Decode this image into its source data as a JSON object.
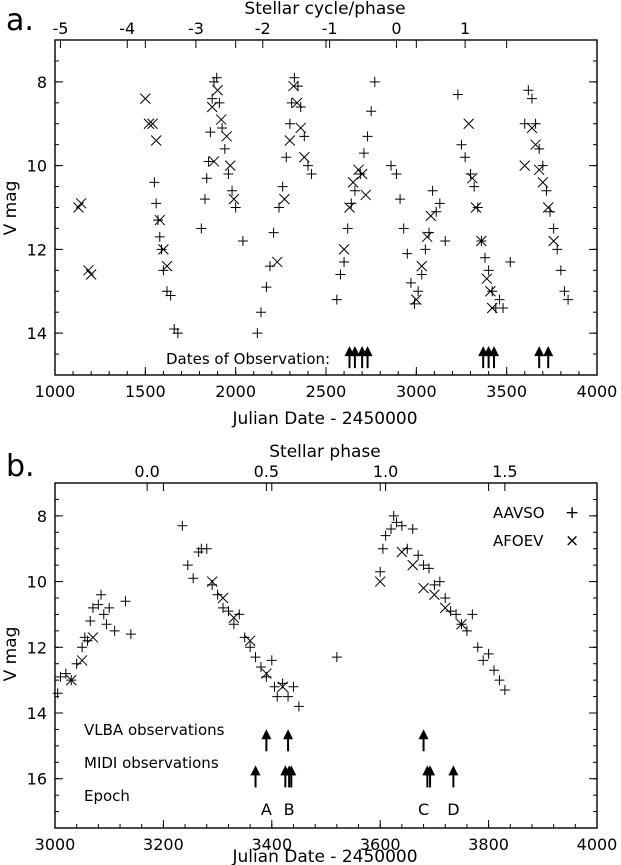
{
  "panels": {
    "a": {
      "panel_label": "a.",
      "top_axis_title": "Stellar cycle/phase",
      "xlabel": "Julian Date - 2450000",
      "ylabel": "V mag",
      "annotation": "Dates of Observation:"
    },
    "b": {
      "panel_label": "b.",
      "top_axis_title": "Stellar phase",
      "xlabel": "Julian Date - 2450000",
      "ylabel": "V mag",
      "legend": [
        {
          "name": "AAVSO",
          "symbol": "+"
        },
        {
          "name": "AFOEV",
          "symbol": "×"
        }
      ],
      "row_labels": {
        "vlba": "VLBA observations",
        "midi": "MIDI observations",
        "epoch": "Epoch"
      }
    }
  },
  "chart_data": [
    {
      "type": "scatter",
      "panel": "a",
      "xlim": [
        1000,
        4000
      ],
      "ylim": [
        15,
        7
      ],
      "y_inverted": true,
      "xticks": [
        "1000",
        "1500",
        "2000",
        "2500",
        "3000",
        "3500",
        "4000"
      ],
      "xtick_values": [
        1000,
        1500,
        2000,
        2500,
        3000,
        3500,
        4000
      ],
      "yticks": [
        "8",
        "10",
        "12",
        "14"
      ],
      "ytick_values": [
        8,
        10,
        12,
        14
      ],
      "top_ticks": [
        {
          "label": "-5",
          "x": 1030
        },
        {
          "label": "-4",
          "x": 1400
        },
        {
          "label": "-3",
          "x": 1780
        },
        {
          "label": "-2",
          "x": 2150
        },
        {
          "label": "-1",
          "x": 2520
        },
        {
          "label": "0",
          "x": 2890
        },
        {
          "label": "1",
          "x": 3270
        }
      ],
      "observation_arrows": [
        2630,
        2660,
        2700,
        2730,
        3370,
        3400,
        3430,
        3680,
        3730
      ],
      "observation_arrow_y": 14.55,
      "series": [
        {
          "symbol": "x",
          "points": [
            [
              1130,
              11.0
            ],
            [
              1145,
              10.9
            ],
            [
              1185,
              12.5
            ],
            [
              1200,
              12.6
            ],
            [
              1500,
              8.4
            ],
            [
              1520,
              9.0
            ],
            [
              1540,
              9.0
            ],
            [
              1560,
              9.4
            ],
            [
              1580,
              11.3
            ],
            [
              1600,
              12.0
            ],
            [
              1620,
              12.4
            ],
            [
              1870,
              8.6
            ],
            [
              1880,
              9.9
            ],
            [
              1900,
              8.2
            ],
            [
              1920,
              8.9
            ],
            [
              1950,
              9.3
            ],
            [
              1970,
              10.0
            ],
            [
              1990,
              10.8
            ],
            [
              2230,
              12.3
            ],
            [
              2270,
              10.8
            ],
            [
              2300,
              9.4
            ],
            [
              2320,
              8.1
            ],
            [
              2340,
              8.5
            ],
            [
              2360,
              9.1
            ],
            [
              2380,
              9.8
            ],
            [
              2600,
              12.0
            ],
            [
              2630,
              11.0
            ],
            [
              2650,
              10.4
            ],
            [
              2680,
              10.1
            ],
            [
              2700,
              10.2
            ],
            [
              2720,
              10.7
            ],
            [
              3000,
              13.2
            ],
            [
              3030,
              12.4
            ],
            [
              3060,
              11.7
            ],
            [
              3080,
              11.2
            ],
            [
              3290,
              9.0
            ],
            [
              3310,
              10.3
            ],
            [
              3330,
              11.0
            ],
            [
              3360,
              11.8
            ],
            [
              3390,
              12.7
            ],
            [
              3410,
              13.0
            ],
            [
              3420,
              13.4
            ],
            [
              3600,
              10.0
            ],
            [
              3640,
              9.1
            ],
            [
              3660,
              9.5
            ],
            [
              3680,
              10.1
            ],
            [
              3700,
              10.4
            ],
            [
              3730,
              11.0
            ],
            [
              3760,
              11.8
            ]
          ]
        },
        {
          "symbol": "+",
          "points": [
            [
              1550,
              10.4
            ],
            [
              1560,
              10.9
            ],
            [
              1570,
              11.3
            ],
            [
              1580,
              11.7
            ],
            [
              1590,
              12.0
            ],
            [
              1600,
              12.5
            ],
            [
              1620,
              13.0
            ],
            [
              1640,
              13.1
            ],
            [
              1660,
              13.9
            ],
            [
              1680,
              14.0
            ],
            [
              1810,
              11.5
            ],
            [
              1830,
              10.8
            ],
            [
              1840,
              10.3
            ],
            [
              1850,
              9.9
            ],
            [
              1860,
              9.2
            ],
            [
              1870,
              8.4
            ],
            [
              1880,
              8.0
            ],
            [
              1895,
              7.9
            ],
            [
              1910,
              8.5
            ],
            [
              1925,
              9.1
            ],
            [
              1940,
              9.6
            ],
            [
              1960,
              10.2
            ],
            [
              1980,
              10.6
            ],
            [
              2000,
              11.0
            ],
            [
              2040,
              11.8
            ],
            [
              2120,
              14.0
            ],
            [
              2140,
              13.5
            ],
            [
              2170,
              12.9
            ],
            [
              2190,
              12.4
            ],
            [
              2210,
              11.6
            ],
            [
              2240,
              11.0
            ],
            [
              2260,
              10.5
            ],
            [
              2280,
              9.8
            ],
            [
              2300,
              9.0
            ],
            [
              2310,
              8.5
            ],
            [
              2325,
              7.9
            ],
            [
              2345,
              8.1
            ],
            [
              2360,
              8.6
            ],
            [
              2380,
              9.3
            ],
            [
              2400,
              10.0
            ],
            [
              2420,
              10.2
            ],
            [
              2560,
              13.2
            ],
            [
              2580,
              12.6
            ],
            [
              2600,
              12.3
            ],
            [
              2620,
              11.5
            ],
            [
              2640,
              10.9
            ],
            [
              2660,
              10.6
            ],
            [
              2690,
              10.2
            ],
            [
              2710,
              9.7
            ],
            [
              2730,
              9.3
            ],
            [
              2750,
              8.7
            ],
            [
              2770,
              8.0
            ],
            [
              2860,
              10.0
            ],
            [
              2890,
              10.2
            ],
            [
              2910,
              10.8
            ],
            [
              2930,
              11.5
            ],
            [
              2950,
              12.1
            ],
            [
              2970,
              12.8
            ],
            [
              2990,
              13.3
            ],
            [
              3010,
              13.0
            ],
            [
              3030,
              12.6
            ],
            [
              3050,
              12.0
            ],
            [
              3070,
              11.6
            ],
            [
              3090,
              10.6
            ],
            [
              3110,
              11.1
            ],
            [
              3130,
              10.9
            ],
            [
              3160,
              11.8
            ],
            [
              3230,
              8.3
            ],
            [
              3250,
              9.5
            ],
            [
              3270,
              9.8
            ],
            [
              3300,
              10.2
            ],
            [
              3320,
              10.5
            ],
            [
              3340,
              11.0
            ],
            [
              3360,
              11.8
            ],
            [
              3380,
              12.2
            ],
            [
              3400,
              12.5
            ],
            [
              3420,
              13.0
            ],
            [
              3440,
              13.4
            ],
            [
              3460,
              13.2
            ],
            [
              3480,
              13.4
            ],
            [
              3520,
              12.3
            ],
            [
              3600,
              9.0
            ],
            [
              3620,
              8.2
            ],
            [
              3640,
              8.4
            ],
            [
              3660,
              9.0
            ],
            [
              3680,
              9.6
            ],
            [
              3700,
              10.0
            ],
            [
              3720,
              10.6
            ],
            [
              3740,
              11.1
            ],
            [
              3760,
              11.5
            ],
            [
              3780,
              12.0
            ],
            [
              3800,
              12.5
            ],
            [
              3820,
              13.0
            ],
            [
              3840,
              13.2
            ]
          ]
        }
      ]
    },
    {
      "type": "scatter",
      "panel": "b",
      "xlim": [
        3000,
        4000
      ],
      "ylim": [
        17.5,
        7
      ],
      "y_inverted": true,
      "xticks": [
        "3000",
        "3200",
        "3400",
        "3600",
        "3800",
        "4000"
      ],
      "xtick_values": [
        3000,
        3200,
        3400,
        3600,
        3800,
        4000
      ],
      "yticks": [
        "8",
        "10",
        "12",
        "14",
        "16"
      ],
      "ytick_values": [
        8,
        10,
        12,
        14,
        16
      ],
      "top_ticks": [
        {
          "label": "0.0",
          "x": 3170
        },
        {
          "label": "0.5",
          "x": 3390
        },
        {
          "label": "1.0",
          "x": 3610
        },
        {
          "label": "1.5",
          "x": 3830
        }
      ],
      "vlba_arrows": [
        3390,
        3430,
        3680
      ],
      "vlba_arrow_y": 14.8,
      "midi_arrows": [
        3370,
        3425,
        3432,
        3436,
        3687,
        3692,
        3735
      ],
      "midi_arrow_y": 15.9,
      "epochs": [
        {
          "label": "A",
          "x": 3390
        },
        {
          "label": "B",
          "x": 3432
        },
        {
          "label": "C",
          "x": 3680
        },
        {
          "label": "D",
          "x": 3735
        }
      ],
      "epoch_y": 16.95,
      "series": [
        {
          "name": "AAVSO",
          "symbol": "+",
          "points": [
            [
              3005,
              13.4
            ],
            [
              3010,
              12.9
            ],
            [
              3020,
              12.8
            ],
            [
              3030,
              13.0
            ],
            [
              3040,
              12.5
            ],
            [
              3050,
              12.0
            ],
            [
              3055,
              11.7
            ],
            [
              3060,
              11.8
            ],
            [
              3065,
              11.2
            ],
            [
              3070,
              10.8
            ],
            [
              3080,
              10.7
            ],
            [
              3085,
              10.4
            ],
            [
              3090,
              11.0
            ],
            [
              3095,
              11.3
            ],
            [
              3100,
              10.8
            ],
            [
              3110,
              11.5
            ],
            [
              3130,
              10.6
            ],
            [
              3140,
              11.6
            ],
            [
              3235,
              8.3
            ],
            [
              3245,
              9.5
            ],
            [
              3255,
              9.9
            ],
            [
              3265,
              9.1
            ],
            [
              3270,
              9.0
            ],
            [
              3280,
              9.0
            ],
            [
              3290,
              10.1
            ],
            [
              3300,
              10.4
            ],
            [
              3310,
              10.8
            ],
            [
              3320,
              10.9
            ],
            [
              3330,
              11.3
            ],
            [
              3340,
              11.0
            ],
            [
              3350,
              11.7
            ],
            [
              3360,
              12.0
            ],
            [
              3370,
              12.3
            ],
            [
              3380,
              12.6
            ],
            [
              3390,
              12.9
            ],
            [
              3400,
              12.4
            ],
            [
              3405,
              13.2
            ],
            [
              3410,
              13.5
            ],
            [
              3420,
              13.1
            ],
            [
              3430,
              13.5
            ],
            [
              3440,
              13.2
            ],
            [
              3450,
              13.8
            ],
            [
              3520,
              12.3
            ],
            [
              3600,
              9.7
            ],
            [
              3605,
              9.0
            ],
            [
              3610,
              8.6
            ],
            [
              3620,
              8.4
            ],
            [
              3625,
              8.0
            ],
            [
              3630,
              8.2
            ],
            [
              3640,
              8.3
            ],
            [
              3650,
              9.0
            ],
            [
              3660,
              8.4
            ],
            [
              3670,
              9.2
            ],
            [
              3680,
              9.5
            ],
            [
              3690,
              9.6
            ],
            [
              3700,
              10.1
            ],
            [
              3710,
              10.0
            ],
            [
              3720,
              10.5
            ],
            [
              3730,
              10.9
            ],
            [
              3740,
              11.0
            ],
            [
              3750,
              11.3
            ],
            [
              3760,
              11.5
            ],
            [
              3770,
              11.0
            ],
            [
              3780,
              12.0
            ],
            [
              3790,
              12.4
            ],
            [
              3800,
              12.2
            ],
            [
              3810,
              12.7
            ],
            [
              3820,
              13.0
            ],
            [
              3830,
              13.3
            ]
          ]
        },
        {
          "name": "AFOEV",
          "symbol": "x",
          "points": [
            [
              3030,
              13.0
            ],
            [
              3050,
              12.4
            ],
            [
              3070,
              11.7
            ],
            [
              3290,
              10.0
            ],
            [
              3310,
              10.5
            ],
            [
              3330,
              11.1
            ],
            [
              3360,
              11.8
            ],
            [
              3390,
              12.8
            ],
            [
              3420,
              13.2
            ],
            [
              3600,
              10.0
            ],
            [
              3640,
              9.1
            ],
            [
              3660,
              9.5
            ],
            [
              3680,
              10.2
            ],
            [
              3700,
              10.4
            ],
            [
              3720,
              10.8
            ],
            [
              3750,
              11.3
            ]
          ]
        }
      ]
    }
  ]
}
